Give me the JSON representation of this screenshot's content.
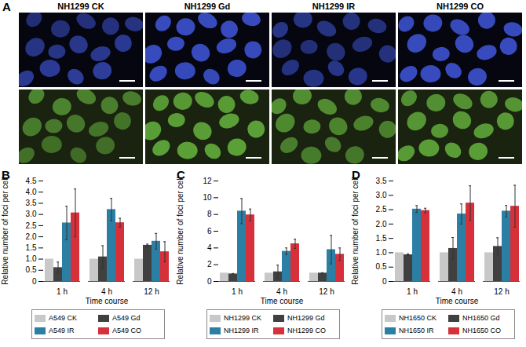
{
  "panel_a": {
    "label": "A",
    "titles": [
      "NH1299 CK",
      "NH1299 Gd",
      "NH1299 IR",
      "NH1299 CO"
    ]
  },
  "chart_data": [
    {
      "panel": "B",
      "type": "bar",
      "categories": [
        "1 h",
        "4 h",
        "12 h"
      ],
      "xlabel": "Time course",
      "ylabel": "Relative number of foci per cell",
      "ylim": [
        0,
        4.5
      ],
      "yticks": [
        0,
        0.5,
        {
          "value": 1,
          "label": "1.0"
        },
        1.5,
        {
          "value": 2,
          "label": "2.0"
        },
        2.5,
        {
          "value": 3,
          "label": "3.0"
        },
        3.5,
        {
          "value": 4,
          "label": "4.0"
        },
        4.5
      ],
      "legend": "bottom",
      "series": [
        {
          "name": "A549 CK",
          "color": "#c8c8c8",
          "values": [
            1.0,
            1.0,
            1.0
          ],
          "errors": [
            0,
            0,
            0
          ]
        },
        {
          "name": "A549 Gd",
          "color": "#404040",
          "values": [
            0.62,
            1.1,
            1.62
          ],
          "errors": [
            0.25,
            0.5,
            0.05
          ]
        },
        {
          "name": "A549 IR",
          "color": "#2b7ea4",
          "values": [
            2.62,
            3.22,
            1.8
          ],
          "errors": [
            0.75,
            0.5,
            0.35
          ]
        },
        {
          "name": "A549 CO",
          "color": "#d6303a",
          "values": [
            3.07,
            2.63,
            1.33
          ],
          "errors": [
            1.07,
            0.2,
            0.45
          ]
        }
      ]
    },
    {
      "panel": "C",
      "type": "bar",
      "categories": [
        "1 h",
        "4 h",
        "12 h"
      ],
      "xlabel": "Time course",
      "ylabel": "Relative number of foci per cell",
      "ylim": [
        0,
        12
      ],
      "yticks": [
        0,
        2,
        4,
        6,
        8,
        10,
        12
      ],
      "legend": "bottom",
      "series": [
        {
          "name": "NH1299 CK",
          "color": "#c8c8c8",
          "values": [
            1.0,
            1.0,
            1.0
          ],
          "errors": [
            0,
            0,
            0
          ]
        },
        {
          "name": "NH1299 Gd",
          "color": "#404040",
          "values": [
            0.9,
            1.15,
            1.0
          ],
          "errors": [
            0.05,
            0.8,
            0.05
          ]
        },
        {
          "name": "NH1299 IR",
          "color": "#2b7ea4",
          "values": [
            8.4,
            3.6,
            3.8
          ],
          "errors": [
            1.5,
            0.4,
            1.7
          ]
        },
        {
          "name": "NH1299 CO",
          "color": "#d6303a",
          "values": [
            7.95,
            4.5,
            3.25
          ],
          "errors": [
            0.7,
            0.55,
            0.75
          ]
        }
      ]
    },
    {
      "panel": "D",
      "type": "bar",
      "categories": [
        "1 h",
        "4 h",
        "12 h"
      ],
      "xlabel": "Time course",
      "ylabel": "Relative number of foci per cell",
      "ylim": [
        0,
        3.5
      ],
      "yticks": [
        0,
        0.5,
        {
          "value": 1,
          "label": "1.0"
        },
        1.5,
        {
          "value": 2,
          "label": "2.0"
        },
        2.5,
        {
          "value": 3,
          "label": "3.0"
        },
        3.5
      ],
      "legend": "bottom",
      "series": [
        {
          "name": "NH1650 CK",
          "color": "#c8c8c8",
          "values": [
            1.0,
            1.0,
            1.0
          ],
          "errors": [
            0,
            0,
            0
          ]
        },
        {
          "name": "NH1650 Gd",
          "color": "#404040",
          "values": [
            0.93,
            1.15,
            1.22
          ],
          "errors": [
            0.03,
            0.38,
            0.3
          ]
        },
        {
          "name": "NH1650 IR",
          "color": "#2b7ea4",
          "values": [
            2.52,
            2.35,
            2.45
          ],
          "errors": [
            0.12,
            0.35,
            0.2
          ]
        },
        {
          "name": "NH1650 CO",
          "color": "#d6303a",
          "values": [
            2.47,
            2.73,
            2.62
          ],
          "errors": [
            0.08,
            0.6,
            0.73
          ]
        }
      ]
    }
  ]
}
